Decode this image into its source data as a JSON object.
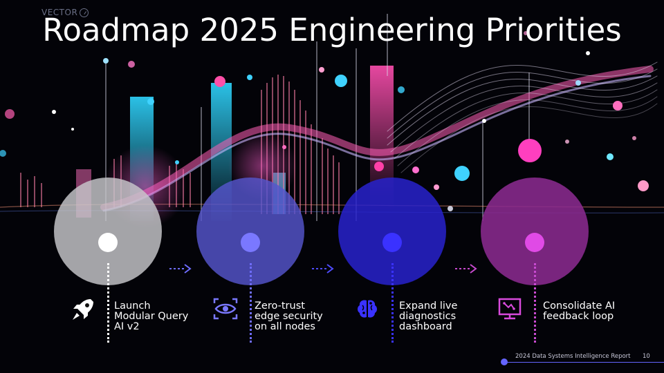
{
  "title": "Roadmap 2025 Engineering Priorities",
  "logo_text": "VECTOR",
  "steps": [
    {
      "label": "Launch Modular Query AI v2",
      "icon": "rocket-icon",
      "circle_color": "#b9b9bc",
      "dot_color": "#ffffff"
    },
    {
      "label": "Zero-trust edge security on all nodes",
      "icon": "eye-scan-icon",
      "circle_color": "#5555c8",
      "dot_color": "#7a78ff"
    },
    {
      "label": "Expand live diagnostics dashboard",
      "icon": "brain-icon",
      "circle_color": "#2a23c8",
      "dot_color": "#3a32ff"
    },
    {
      "label": "Consolidate AI feedback loop",
      "icon": "monitor-icon",
      "circle_color": "#8a2a8e",
      "dot_color": "#e04ae6"
    }
  ],
  "footer": {
    "text": "2024 Data Systems Intelligence Report",
    "page": "10"
  }
}
